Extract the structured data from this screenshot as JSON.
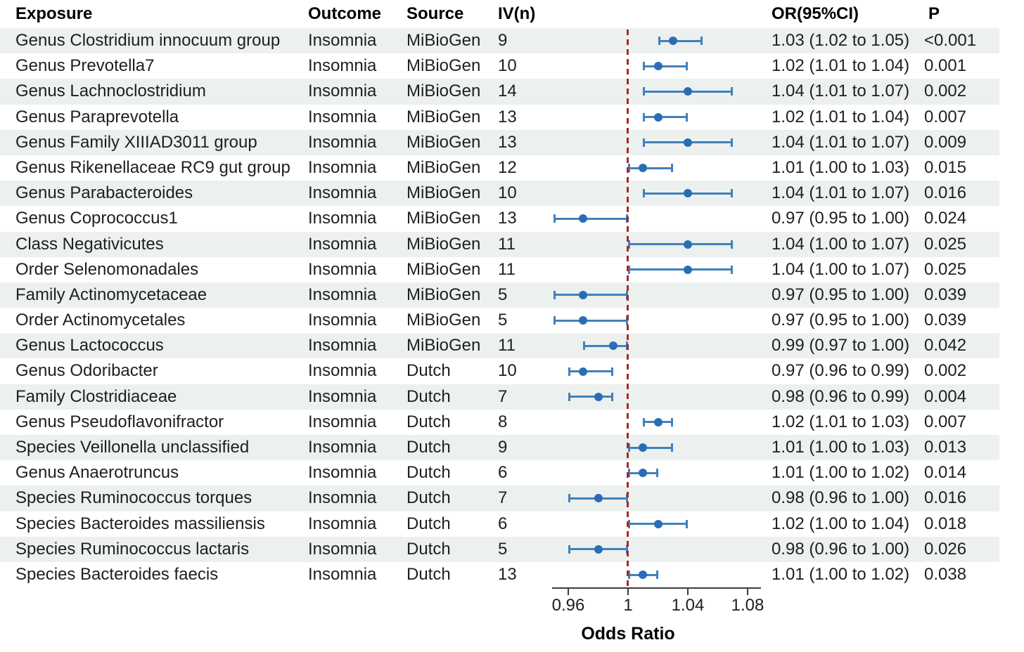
{
  "header": {
    "exposure": "Exposure",
    "outcome": "Outcome",
    "source": "Source",
    "iv": "IV(n)",
    "or_ci": "OR(95%CI)",
    "p": "P"
  },
  "colors": {
    "marker_dot": "#2a6db6",
    "ci_line": "#4181bc",
    "reference_line": "#a52a24",
    "row_shade": "#ecf0ee",
    "axis": "#3c3c3c",
    "text": "#1f1f1f"
  },
  "chart_data": {
    "type": "forest",
    "xlabel": "Odds Ratio",
    "x_ticks": [
      0.96,
      1,
      1.04,
      1.08
    ],
    "x_tick_labels": [
      "0.96",
      "1",
      "1.04",
      "1.08"
    ],
    "xlim": [
      0.949,
      1.089
    ],
    "reference_line": 1,
    "grid": false,
    "columns": [
      "Exposure",
      "Outcome",
      "Source",
      "IV(n)",
      "OR(95%CI)",
      "P"
    ],
    "rows": [
      {
        "exposure": "Genus Clostridium innocuum group",
        "outcome": "Insomnia",
        "source": "MiBioGen",
        "iv": "9",
        "or": 1.03,
        "lo": 1.02,
        "hi": 1.05,
        "or_text": "1.03 (1.02 to 1.05)",
        "p": "<0.001"
      },
      {
        "exposure": "Genus Prevotella7",
        "outcome": "Insomnia",
        "source": "MiBioGen",
        "iv": "10",
        "or": 1.02,
        "lo": 1.01,
        "hi": 1.04,
        "or_text": "1.02 (1.01 to 1.04)",
        "p": "0.001"
      },
      {
        "exposure": "Genus Lachnoclostridium",
        "outcome": "Insomnia",
        "source": "MiBioGen",
        "iv": "14",
        "or": 1.04,
        "lo": 1.01,
        "hi": 1.07,
        "or_text": "1.04 (1.01 to 1.07)",
        "p": "0.002"
      },
      {
        "exposure": "Genus Paraprevotella",
        "outcome": "Insomnia",
        "source": "MiBioGen",
        "iv": "13",
        "or": 1.02,
        "lo": 1.01,
        "hi": 1.04,
        "or_text": "1.02 (1.01 to 1.04)",
        "p": "0.007"
      },
      {
        "exposure": "Genus Family XIIIAD3011 group",
        "outcome": "Insomnia",
        "source": "MiBioGen",
        "iv": "13",
        "or": 1.04,
        "lo": 1.01,
        "hi": 1.07,
        "or_text": "1.04 (1.01 to 1.07)",
        "p": "0.009"
      },
      {
        "exposure": "Genus Rikenellaceae RC9 gut group",
        "outcome": "Insomnia",
        "source": "MiBioGen",
        "iv": "12",
        "or": 1.01,
        "lo": 1.0,
        "hi": 1.03,
        "or_text": "1.01 (1.00 to 1.03)",
        "p": "0.015"
      },
      {
        "exposure": "Genus Parabacteroides",
        "outcome": "Insomnia",
        "source": "MiBioGen",
        "iv": "10",
        "or": 1.04,
        "lo": 1.01,
        "hi": 1.07,
        "or_text": "1.04 (1.01 to 1.07)",
        "p": "0.016"
      },
      {
        "exposure": "Genus Coprococcus1",
        "outcome": "Insomnia",
        "source": "MiBioGen",
        "iv": "13",
        "or": 0.97,
        "lo": 0.95,
        "hi": 1.0,
        "or_text": "0.97 (0.95 to 1.00)",
        "p": "0.024"
      },
      {
        "exposure": "Class Negativicutes",
        "outcome": "Insomnia",
        "source": "MiBioGen",
        "iv": "11",
        "or": 1.04,
        "lo": 1.0,
        "hi": 1.07,
        "or_text": "1.04 (1.00 to 1.07)",
        "p": "0.025"
      },
      {
        "exposure": "Order Selenomonadales",
        "outcome": "Insomnia",
        "source": "MiBioGen",
        "iv": "11",
        "or": 1.04,
        "lo": 1.0,
        "hi": 1.07,
        "or_text": "1.04 (1.00 to 1.07)",
        "p": "0.025"
      },
      {
        "exposure": "Family Actinomycetaceae",
        "outcome": "Insomnia",
        "source": "MiBioGen",
        "iv": "5",
        "or": 0.97,
        "lo": 0.95,
        "hi": 1.0,
        "or_text": "0.97 (0.95 to 1.00)",
        "p": "0.039"
      },
      {
        "exposure": "Order Actinomycetales",
        "outcome": "Insomnia",
        "source": "MiBioGen",
        "iv": "5",
        "or": 0.97,
        "lo": 0.95,
        "hi": 1.0,
        "or_text": "0.97 (0.95 to 1.00)",
        "p": "0.039"
      },
      {
        "exposure": "Genus Lactococcus",
        "outcome": "Insomnia",
        "source": "MiBioGen",
        "iv": "11",
        "or": 0.99,
        "lo": 0.97,
        "hi": 1.0,
        "or_text": "0.99 (0.97 to 1.00)",
        "p": "0.042"
      },
      {
        "exposure": "Genus Odoribacter",
        "outcome": "Insomnia",
        "source": "Dutch",
        "iv": "10",
        "or": 0.97,
        "lo": 0.96,
        "hi": 0.99,
        "or_text": "0.97 (0.96 to 0.99)",
        "p": "0.002"
      },
      {
        "exposure": "Family Clostridiaceae",
        "outcome": "Insomnia",
        "source": "Dutch",
        "iv": "7",
        "or": 0.98,
        "lo": 0.96,
        "hi": 0.99,
        "or_text": "0.98 (0.96 to 0.99)",
        "p": "0.004"
      },
      {
        "exposure": "Genus Pseudoflavonifractor",
        "outcome": "Insomnia",
        "source": "Dutch",
        "iv": "8",
        "or": 1.02,
        "lo": 1.01,
        "hi": 1.03,
        "or_text": "1.02 (1.01 to 1.03)",
        "p": "0.007"
      },
      {
        "exposure": "Species Veillonella unclassified",
        "outcome": "Insomnia",
        "source": "Dutch",
        "iv": "9",
        "or": 1.01,
        "lo": 1.0,
        "hi": 1.03,
        "or_text": "1.01 (1.00 to 1.03)",
        "p": "0.013"
      },
      {
        "exposure": "Genus Anaerotruncus",
        "outcome": "Insomnia",
        "source": "Dutch",
        "iv": "6",
        "or": 1.01,
        "lo": 1.0,
        "hi": 1.02,
        "or_text": "1.01 (1.00 to 1.02)",
        "p": "0.014"
      },
      {
        "exposure": "Species Ruminococcus torques",
        "outcome": "Insomnia",
        "source": "Dutch",
        "iv": "7",
        "or": 0.98,
        "lo": 0.96,
        "hi": 1.0,
        "or_text": "0.98 (0.96 to 1.00)",
        "p": "0.016"
      },
      {
        "exposure": "Species Bacteroides massiliensis",
        "outcome": "Insomnia",
        "source": "Dutch",
        "iv": "6",
        "or": 1.02,
        "lo": 1.0,
        "hi": 1.04,
        "or_text": "1.02 (1.00 to 1.04)",
        "p": "0.018"
      },
      {
        "exposure": "Species Ruminococcus lactaris",
        "outcome": "Insomnia",
        "source": "Dutch",
        "iv": "5",
        "or": 0.98,
        "lo": 0.96,
        "hi": 1.0,
        "or_text": "0.98 (0.96 to 1.00)",
        "p": "0.026"
      },
      {
        "exposure": "Species Bacteroides faecis",
        "outcome": "Insomnia",
        "source": "Dutch",
        "iv": "13",
        "or": 1.01,
        "lo": 1.0,
        "hi": 1.02,
        "or_text": "1.01 (1.00 to 1.02)",
        "p": "0.038"
      }
    ]
  }
}
